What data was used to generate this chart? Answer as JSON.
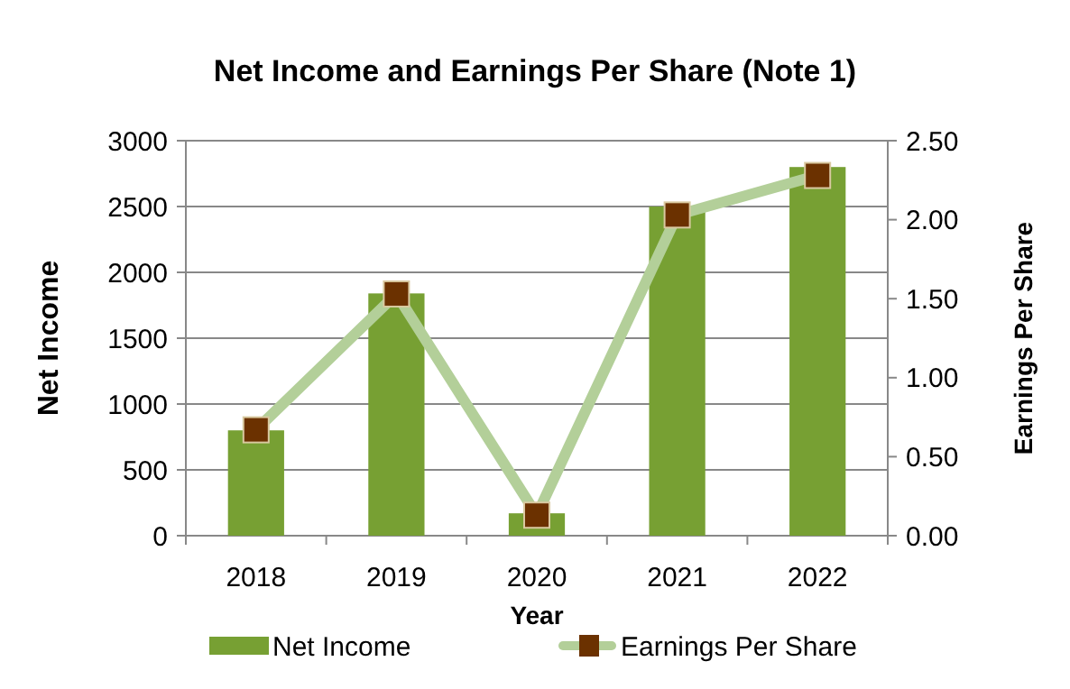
{
  "chart_data": {
    "type": "bar",
    "title": "Net Income and Earnings Per Share (Note 1)",
    "xlabel": "Year",
    "ylabel": "Net Income",
    "y2label": "Earnings Per Share",
    "categories": [
      "2018",
      "2019",
      "2020",
      "2021",
      "2022"
    ],
    "series": [
      {
        "name": "Net Income",
        "color": "#77a033",
        "values": [
          800,
          1840,
          170,
          2500,
          2800
        ]
      },
      {
        "name": "Earnings Per Share",
        "type": "line",
        "axis": "y2",
        "color": "#b3cf99",
        "marker": "square",
        "values": [
          0.67,
          1.53,
          0.13,
          2.03,
          2.28
        ]
      }
    ],
    "ylim": [
      0,
      3000
    ],
    "yticks": [
      0,
      500,
      1000,
      1500,
      2000,
      2500,
      3000
    ],
    "y2lim": [
      0,
      2.5
    ],
    "y2ticks": [
      {
        "value": 0,
        "label": "0.00"
      },
      {
        "value": 0.5,
        "label": "0.50"
      },
      {
        "value": 1,
        "label": "1.00"
      },
      {
        "value": 1.5,
        "label": "1.50"
      },
      {
        "value": 2,
        "label": "2.00"
      },
      {
        "value": 2.5,
        "label": "2.50"
      }
    ],
    "grid": "y",
    "legend": "bottom"
  }
}
